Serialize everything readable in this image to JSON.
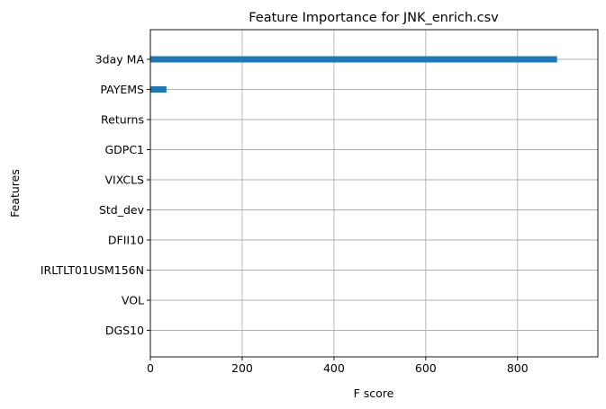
{
  "chart_data": {
    "type": "bar",
    "orientation": "horizontal",
    "title": "Feature Importance for JNK_enrich.csv",
    "xlabel": "F score",
    "ylabel": "Features",
    "categories": [
      "3day MA",
      "PAYEMS",
      "Returns",
      "GDPC1",
      "VIXCLS",
      "Std_dev",
      "DFII10",
      "IRLTLT01USM156N",
      "VOL",
      "DGS10"
    ],
    "values": [
      886,
      35,
      0,
      0,
      0,
      0,
      0,
      0,
      0,
      0
    ],
    "xlim": [
      0,
      975
    ],
    "xticks": [
      0,
      200,
      400,
      600,
      800
    ],
    "grid": true,
    "legend": "none",
    "bar_color": "#1f77b4"
  }
}
